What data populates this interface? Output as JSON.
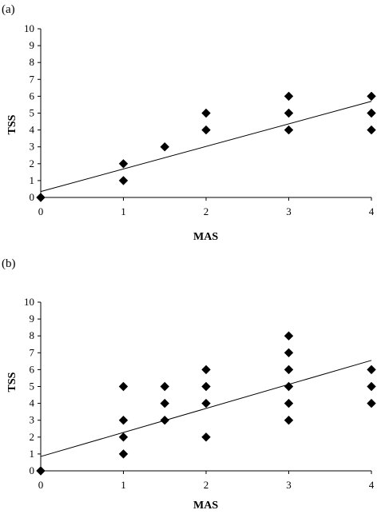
{
  "chart_data": [
    {
      "type": "scatter",
      "panel_label": "(a)",
      "xlabel": "MAS",
      "ylabel": "TSS",
      "xlim": [
        0,
        4
      ],
      "ylim": [
        0,
        10
      ],
      "x_ticks": [
        0,
        1,
        2,
        3,
        4
      ],
      "y_ticks": [
        0,
        1,
        2,
        3,
        4,
        5,
        6,
        7,
        8,
        9,
        10
      ],
      "points": [
        {
          "x": 0,
          "y": 0
        },
        {
          "x": 1,
          "y": 1
        },
        {
          "x": 1,
          "y": 2
        },
        {
          "x": 1.5,
          "y": 3
        },
        {
          "x": 2,
          "y": 4
        },
        {
          "x": 2,
          "y": 5
        },
        {
          "x": 3,
          "y": 4
        },
        {
          "x": 3,
          "y": 5
        },
        {
          "x": 3,
          "y": 6
        },
        {
          "x": 4,
          "y": 4
        },
        {
          "x": 4,
          "y": 5
        },
        {
          "x": 4,
          "y": 6
        }
      ],
      "trendline": {
        "x0": 0,
        "y0": 0.35,
        "x1": 4,
        "y1": 5.7
      },
      "marker": "diamond",
      "grid": false
    },
    {
      "type": "scatter",
      "panel_label": "(b)",
      "xlabel": "MAS",
      "ylabel": "TSS",
      "xlim": [
        0,
        4
      ],
      "ylim": [
        0,
        10
      ],
      "x_ticks": [
        0,
        1,
        2,
        3,
        4
      ],
      "y_ticks": [
        0,
        1,
        2,
        3,
        4,
        5,
        6,
        7,
        8,
        9,
        10
      ],
      "points": [
        {
          "x": 0,
          "y": 0
        },
        {
          "x": 1,
          "y": 1
        },
        {
          "x": 1,
          "y": 2
        },
        {
          "x": 1,
          "y": 3
        },
        {
          "x": 1,
          "y": 5
        },
        {
          "x": 1.5,
          "y": 3
        },
        {
          "x": 1.5,
          "y": 4
        },
        {
          "x": 1.5,
          "y": 5
        },
        {
          "x": 2,
          "y": 2
        },
        {
          "x": 2,
          "y": 4
        },
        {
          "x": 2,
          "y": 5
        },
        {
          "x": 2,
          "y": 6
        },
        {
          "x": 3,
          "y": 3
        },
        {
          "x": 3,
          "y": 4
        },
        {
          "x": 3,
          "y": 5
        },
        {
          "x": 3,
          "y": 6
        },
        {
          "x": 3,
          "y": 7
        },
        {
          "x": 3,
          "y": 8
        },
        {
          "x": 4,
          "y": 4
        },
        {
          "x": 4,
          "y": 5
        },
        {
          "x": 4,
          "y": 6
        }
      ],
      "trendline": {
        "x0": 0,
        "y0": 0.85,
        "x1": 4,
        "y1": 6.55
      },
      "marker": "diamond",
      "grid": false
    }
  ]
}
